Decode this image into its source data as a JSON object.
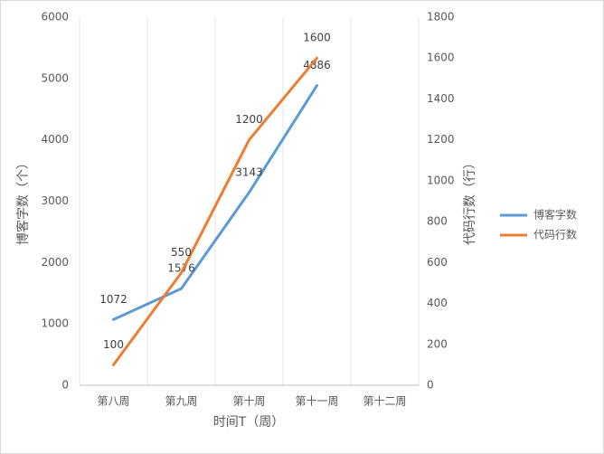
{
  "chart_data": {
    "type": "line",
    "categories": [
      "第八周",
      "第九周",
      "第十周",
      "第十一周",
      "第十二周"
    ],
    "series": [
      {
        "name": "博客字数",
        "color": "#5b9bd5",
        "values": [
          1072,
          1576,
          3143,
          4886,
          null
        ]
      },
      {
        "name": "代码行数",
        "color": "#ed7d31",
        "axis": "y2",
        "values": [
          100,
          550,
          1200,
          1600,
          null
        ]
      }
    ],
    "xlabel": "时间T（周）",
    "ylabel": "博客字数（个）",
    "y2label": "代码行数（行）",
    "ylim": [
      0,
      6000
    ],
    "yticks": [
      0,
      1000,
      2000,
      3000,
      4000,
      5000,
      6000
    ],
    "y2lim": [
      0,
      1800
    ],
    "y2ticks": [
      0,
      200,
      400,
      600,
      800,
      1000,
      1200,
      1400,
      1600,
      1800
    ],
    "legend": "right"
  }
}
